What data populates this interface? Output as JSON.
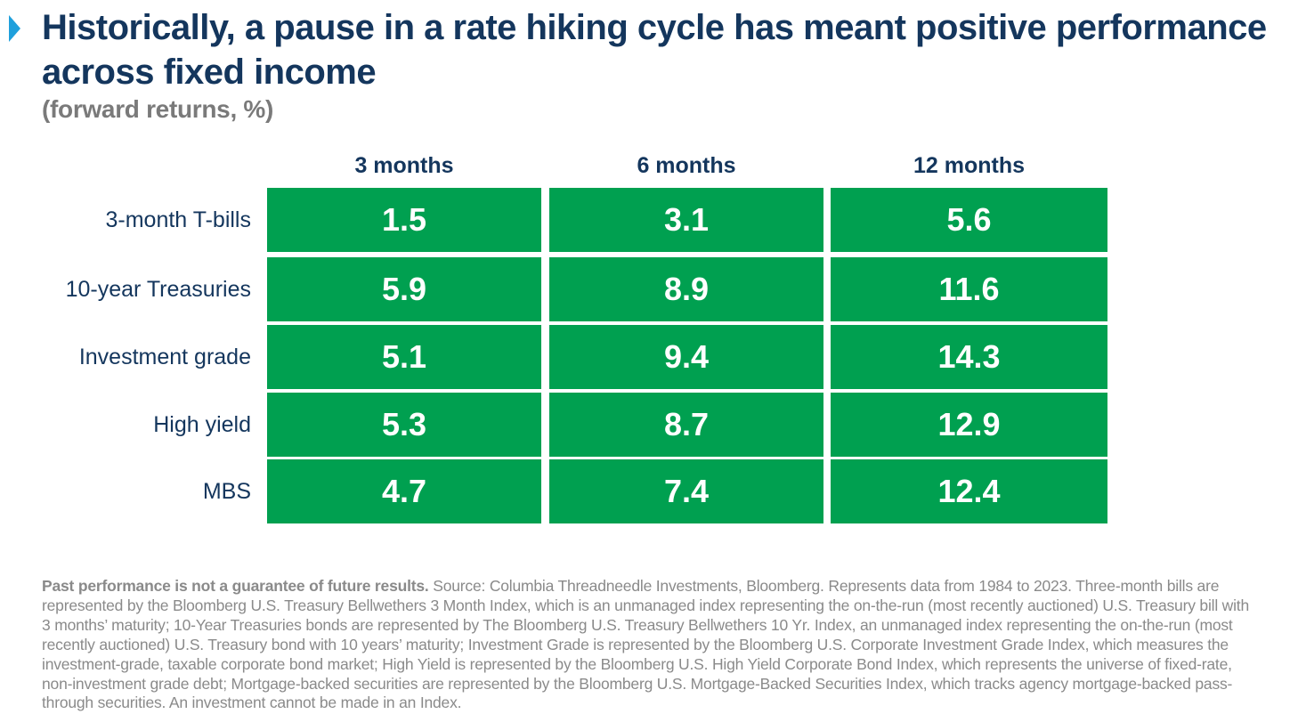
{
  "title": "Historically, a pause in a rate hiking cycle has meant positive performance across fixed income",
  "subtitle": "(forward returns, %)",
  "colors": {
    "accent_marker": "#1fa0dc",
    "title": "#14365d",
    "cell_fill": "#00a050",
    "cell_text": "#ffffff",
    "muted": "#7a7a7a"
  },
  "chart_data": {
    "type": "table",
    "title": "Historically, a pause in a rate hiking cycle has meant positive performance across fixed income",
    "subtitle": "(forward returns, %)",
    "columns": [
      "3 months",
      "6 months",
      "12 months"
    ],
    "rows": [
      {
        "label": "3-month T-bills",
        "values": [
          "1.5",
          "3.1",
          "5.6"
        ]
      },
      {
        "label": "10-year Treasuries",
        "values": [
          "5.9",
          "8.9",
          "11.6"
        ]
      },
      {
        "label": "Investment grade",
        "values": [
          "5.1",
          "9.4",
          "14.3"
        ]
      },
      {
        "label": "High yield",
        "values": [
          "5.3",
          "8.7",
          "12.9"
        ]
      },
      {
        "label": "MBS",
        "values": [
          "4.7",
          "7.4",
          "12.4"
        ]
      }
    ]
  },
  "footnote": {
    "bold": "Past performance is not a guarantee of future results.",
    "text": " Source: Columbia Threadneedle Investments, Bloomberg. Represents data from 1984 to 2023. Three-month bills are represented by the Bloomberg U.S. Treasury Bellwethers 3 Month Index, which is an unmanaged index representing the on-the-run (most recently auctioned) U.S. Treasury bill with 3 months’ maturity; 10-Year Treasuries bonds are represented by The Bloomberg U.S. Treasury Bellwethers 10 Yr. Index, an unmanaged index representing the on-the-run (most recently auctioned) U.S. Treasury bond with 10 years’ maturity; Investment Grade is represented by the Bloomberg U.S. Corporate Investment Grade Index, which measures the investment-grade, taxable corporate bond market; High Yield is represented by the Bloomberg U.S. High Yield Corporate Bond Index, which represents the universe of fixed-rate, non-investment grade debt; Mortgage-backed securities are represented by the Bloomberg U.S. Mortgage-Backed Securities Index, which tracks agency mortgage-backed pass-through securities. An investment cannot be made in an Index."
  }
}
